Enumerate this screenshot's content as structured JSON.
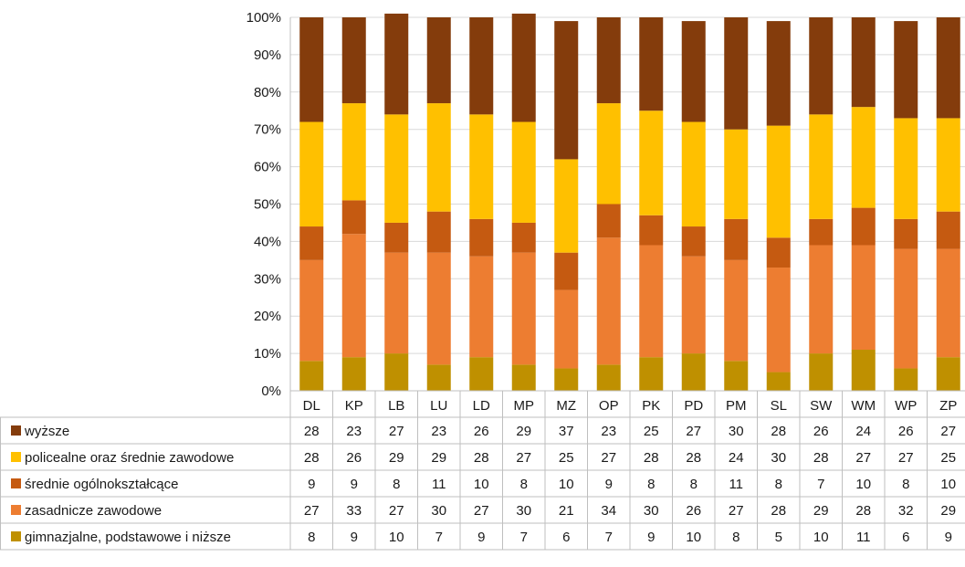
{
  "chart_data": {
    "type": "bar",
    "stacked": true,
    "percent": true,
    "categories": [
      "DL",
      "KP",
      "LB",
      "LU",
      "LD",
      "MP",
      "MZ",
      "OP",
      "PK",
      "PD",
      "PM",
      "SL",
      "SW",
      "WM",
      "WP",
      "ZP"
    ],
    "yticks": [
      "0%",
      "10%",
      "20%",
      "30%",
      "40%",
      "50%",
      "60%",
      "70%",
      "80%",
      "90%",
      "100%"
    ],
    "ylim": [
      0,
      100
    ],
    "grid": true,
    "legend": "data-table",
    "series": [
      {
        "name": "gimnazjalne, podstawowe i niższe",
        "color": "#BF9000",
        "values": [
          8,
          9,
          10,
          7,
          9,
          7,
          6,
          7,
          9,
          10,
          8,
          5,
          10,
          11,
          6,
          9
        ]
      },
      {
        "name": "zasadnicze zawodowe",
        "color": "#ED7D31",
        "values": [
          27,
          33,
          27,
          30,
          27,
          30,
          21,
          34,
          30,
          26,
          27,
          28,
          29,
          28,
          32,
          29
        ]
      },
      {
        "name": "średnie ogólnokształcące",
        "color": "#C55A11",
        "values": [
          9,
          9,
          8,
          11,
          10,
          8,
          10,
          9,
          8,
          8,
          11,
          8,
          7,
          10,
          8,
          10
        ]
      },
      {
        "name": "policealne oraz średnie zawodowe",
        "color": "#FFC000",
        "values": [
          28,
          26,
          29,
          29,
          28,
          27,
          25,
          27,
          28,
          28,
          24,
          30,
          28,
          27,
          27,
          25
        ]
      },
      {
        "name": "wyższe",
        "color": "#843C0C",
        "values": [
          28,
          23,
          27,
          23,
          26,
          29,
          37,
          23,
          25,
          27,
          30,
          28,
          26,
          24,
          26,
          27
        ]
      }
    ]
  }
}
